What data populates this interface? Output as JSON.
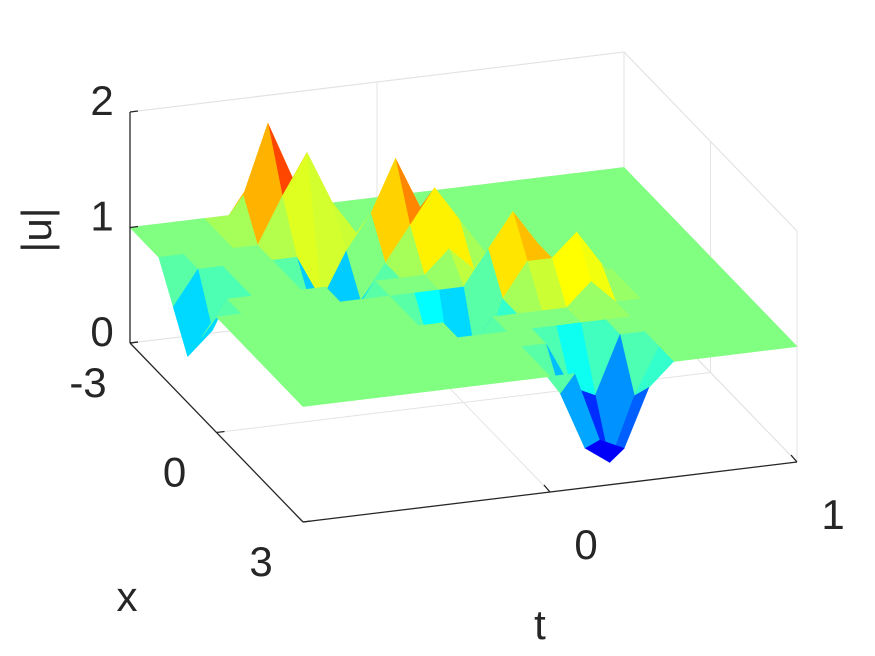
{
  "chart_data": {
    "type": "surface",
    "colormap": "jet",
    "grid": true,
    "zlabel": "|u|",
    "xlabel": "x",
    "tlabel": "t",
    "tlim": [
      -1,
      1
    ],
    "tticks": [
      0,
      1
    ],
    "xlim": [
      -3,
      3
    ],
    "xticks": [
      -3,
      0,
      3
    ],
    "zlim": [
      0,
      2
    ],
    "zticks": [
      0,
      1,
      2
    ],
    "t": [
      -1,
      -0.9,
      -0.8,
      -0.7,
      -0.6,
      -0.5,
      -0.4,
      -0.3,
      -0.2,
      -0.1,
      0,
      0.1,
      0.2,
      0.3,
      0.4,
      0.5,
      0.6,
      0.7,
      0.8,
      0.9,
      1
    ],
    "x": [
      -3,
      -2.5,
      -2,
      -1.5,
      -1,
      -0.5,
      0,
      0.5,
      1,
      1.5,
      2,
      2.5,
      3
    ],
    "z": [
      [
        1,
        1,
        1,
        1,
        1,
        1.3,
        1,
        1,
        1,
        1,
        1,
        1,
        1,
        1,
        1,
        1,
        1,
        1,
        1,
        1,
        1
      ],
      [
        1,
        1,
        1,
        1,
        1.3,
        1.9,
        1.4,
        1,
        1,
        1,
        1,
        1,
        1,
        1,
        1,
        1,
        1,
        1,
        1,
        1,
        1
      ],
      [
        1,
        1,
        1,
        1,
        1,
        1.4,
        1.75,
        1.3,
        1,
        1,
        1,
        1,
        1,
        1,
        1,
        1,
        1,
        1,
        1,
        1,
        1
      ],
      [
        0.7,
        1,
        1,
        1,
        1,
        1,
        0.6,
        1,
        1.3,
        1.75,
        1.3,
        1,
        1,
        1,
        1,
        1,
        1,
        1,
        1,
        1,
        1
      ],
      [
        0.4,
        0.6,
        1,
        1,
        1,
        0.7,
        0.3,
        0.7,
        1,
        1.3,
        1.6,
        1.3,
        1,
        1,
        1,
        1,
        1,
        1,
        1,
        1,
        1
      ],
      [
        0.7,
        1,
        1,
        1,
        1,
        1,
        0.7,
        1,
        1,
        1,
        1.2,
        1,
        1,
        1,
        1,
        1,
        1,
        1,
        1,
        1,
        1
      ],
      [
        1,
        1,
        1,
        1,
        1,
        1,
        1,
        1,
        1,
        1,
        1,
        1.3,
        1.6,
        1.3,
        1,
        1,
        1,
        1,
        1,
        1,
        1
      ],
      [
        1,
        1,
        1,
        1,
        1,
        1,
        1,
        1,
        0.7,
        0.3,
        0.4,
        1,
        1.3,
        1.3,
        1.5,
        1.2,
        1,
        1,
        1,
        1,
        1
      ],
      [
        1,
        1,
        1,
        1,
        1,
        1,
        1,
        1,
        1,
        0.7,
        1,
        1,
        1,
        1,
        1.2,
        1,
        1,
        1,
        1,
        1,
        1
      ],
      [
        1,
        1,
        1,
        1,
        1,
        1,
        1,
        1,
        1,
        1,
        1,
        1,
        1,
        1,
        1,
        1,
        1,
        1,
        1,
        1,
        1
      ],
      [
        1,
        1,
        1,
        1,
        1,
        1,
        1,
        1,
        1,
        1,
        1,
        1,
        0.6,
        0.5,
        1,
        1,
        1,
        1,
        1,
        1,
        1
      ],
      [
        1,
        1,
        1,
        1,
        1,
        1,
        1,
        1,
        1,
        1,
        1,
        0.7,
        0.2,
        0.05,
        0.6,
        1,
        1,
        1,
        1,
        1,
        1
      ],
      [
        1,
        1,
        1,
        1,
        1,
        1,
        1,
        1,
        1,
        1,
        1,
        1,
        0.4,
        0.3,
        0.8,
        1,
        1,
        1,
        1,
        1,
        1
      ]
    ]
  }
}
